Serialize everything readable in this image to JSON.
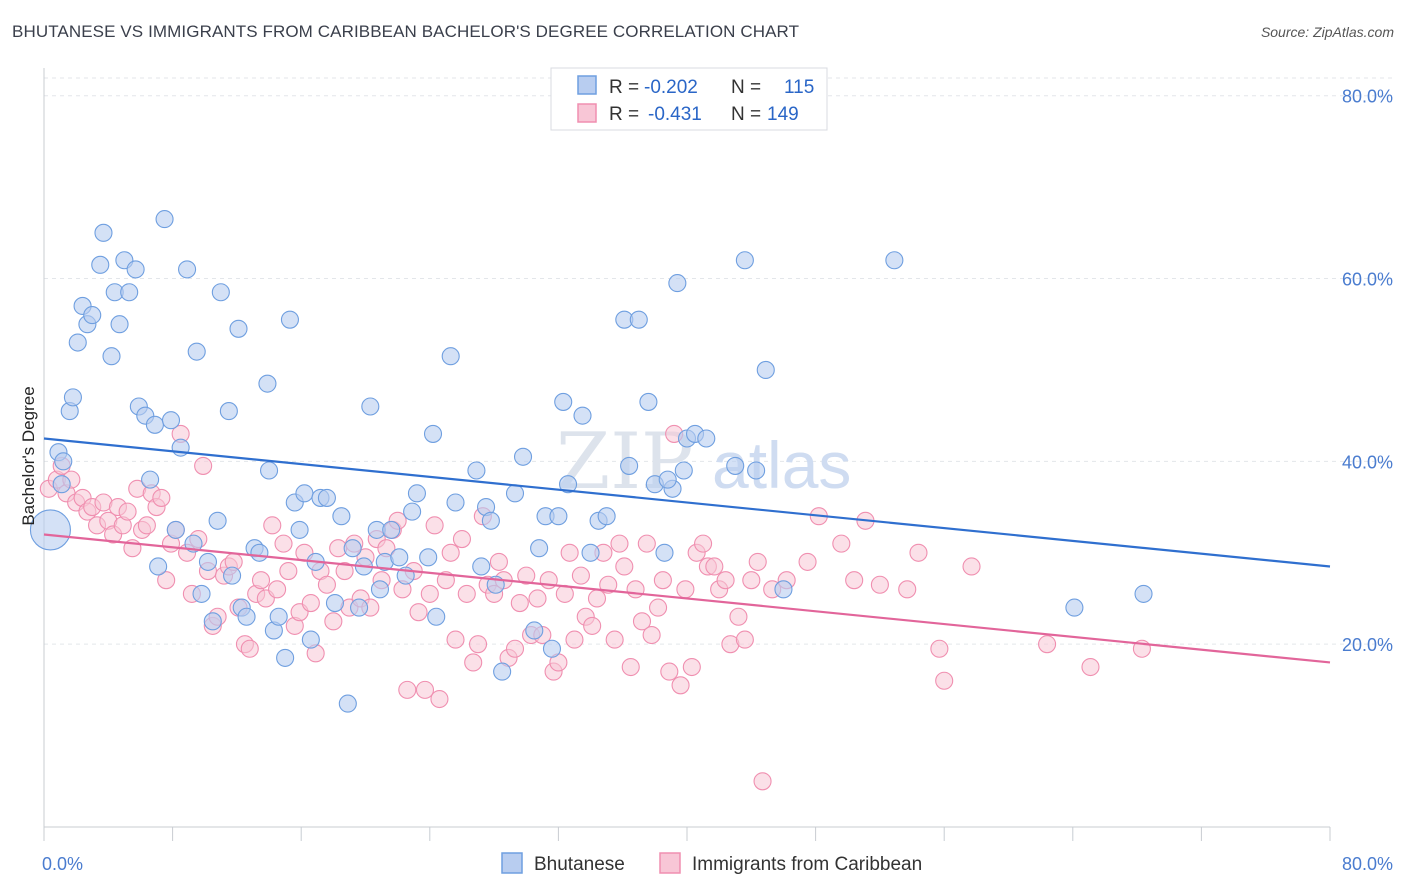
{
  "header": {
    "title": "BHUTANESE VS IMMIGRANTS FROM CARIBBEAN BACHELOR'S DEGREE CORRELATION CHART",
    "source": "Source: ZipAtlas.com"
  },
  "watermark": {
    "part1": "ZIP",
    "part2": "atlas"
  },
  "legend": {
    "r_label": "R =",
    "n_label": "N =",
    "entries": [
      {
        "r": "-0.202",
        "n": "115",
        "color": "#6f9fe0"
      },
      {
        "r": "-0.431",
        "n": "149",
        "color": "#f08fb0"
      }
    ]
  },
  "colors": {
    "series1_fill": "#b8cdf0",
    "series1_stroke": "#6f9fe0",
    "series1_line": "#2f6fcf",
    "series2_fill": "#f8c6d6",
    "series2_stroke": "#f08fb0",
    "series2_line": "#e2659a"
  },
  "chart_data": {
    "type": "scatter",
    "xlabel": "",
    "ylabel": "Bachelor's Degree",
    "xlim": [
      0,
      80
    ],
    "ylim": [
      0,
      85
    ],
    "x_tick_labels": [
      "0.0%",
      "80.0%"
    ],
    "y_ticks": [
      20,
      40,
      60,
      80
    ],
    "y_tick_labels": [
      "20.0%",
      "40.0%",
      "60.0%",
      "80.0%"
    ],
    "grid": true,
    "legend_position": "top-center",
    "series": [
      {
        "name": "Bhutanese",
        "trend": {
          "x": [
            0,
            80
          ],
          "y": [
            42.5,
            28.5
          ]
        },
        "points": [
          [
            0.4,
            32.5
          ],
          [
            0.9,
            41
          ],
          [
            1.2,
            40
          ],
          [
            1.6,
            45.5
          ],
          [
            1.8,
            47
          ],
          [
            2.1,
            53
          ],
          [
            2.4,
            57
          ],
          [
            2.7,
            55
          ],
          [
            3.0,
            56
          ],
          [
            3.5,
            61.5
          ],
          [
            3.7,
            65
          ],
          [
            4.2,
            51.5
          ],
          [
            4.4,
            58.5
          ],
          [
            4.7,
            55
          ],
          [
            5.0,
            62
          ],
          [
            5.3,
            58.5
          ],
          [
            5.7,
            61
          ],
          [
            5.9,
            46
          ],
          [
            6.3,
            45
          ],
          [
            6.6,
            38
          ],
          [
            6.9,
            44
          ],
          [
            7.1,
            28.5
          ],
          [
            7.5,
            66.5
          ],
          [
            7.9,
            44.5
          ],
          [
            8.2,
            32.5
          ],
          [
            8.5,
            41.5
          ],
          [
            8.9,
            61
          ],
          [
            9.3,
            31
          ],
          [
            9.5,
            52
          ],
          [
            9.8,
            25.5
          ],
          [
            10.2,
            29
          ],
          [
            10.5,
            22.5
          ],
          [
            10.8,
            33.5
          ],
          [
            11.0,
            58.5
          ],
          [
            11.5,
            45.5
          ],
          [
            11.7,
            27.5
          ],
          [
            12.1,
            54.5
          ],
          [
            12.3,
            24
          ],
          [
            12.6,
            23
          ],
          [
            13.1,
            30.5
          ],
          [
            13.4,
            30
          ],
          [
            13.9,
            48.5
          ],
          [
            14.0,
            39
          ],
          [
            14.3,
            21.5
          ],
          [
            14.6,
            23
          ],
          [
            15.0,
            18.5
          ],
          [
            15.3,
            55.5
          ],
          [
            15.6,
            35.5
          ],
          [
            15.9,
            32.5
          ],
          [
            16.2,
            36.5
          ],
          [
            16.6,
            20.5
          ],
          [
            16.9,
            29
          ],
          [
            17.2,
            36
          ],
          [
            17.6,
            36
          ],
          [
            18.1,
            24.5
          ],
          [
            18.5,
            34
          ],
          [
            18.9,
            13.5
          ],
          [
            19.2,
            30.5
          ],
          [
            19.6,
            24
          ],
          [
            19.9,
            28.5
          ],
          [
            20.3,
            46
          ],
          [
            20.7,
            32.5
          ],
          [
            20.9,
            26
          ],
          [
            21.2,
            29
          ],
          [
            21.6,
            32.5
          ],
          [
            22.1,
            29.5
          ],
          [
            22.5,
            27.5
          ],
          [
            22.9,
            34.5
          ],
          [
            23.2,
            36.5
          ],
          [
            23.9,
            29.5
          ],
          [
            24.2,
            43
          ],
          [
            24.4,
            23
          ],
          [
            25.3,
            51.5
          ],
          [
            25.6,
            35.5
          ],
          [
            26.9,
            39
          ],
          [
            27.2,
            28.5
          ],
          [
            27.5,
            35
          ],
          [
            27.8,
            33.5
          ],
          [
            28.1,
            26.5
          ],
          [
            28.5,
            17
          ],
          [
            29.3,
            36.5
          ],
          [
            29.8,
            40.5
          ],
          [
            30.5,
            21.5
          ],
          [
            30.8,
            30.5
          ],
          [
            31.2,
            34
          ],
          [
            31.6,
            19.5
          ],
          [
            32.0,
            34
          ],
          [
            32.3,
            46.5
          ],
          [
            32.6,
            37.5
          ],
          [
            33.5,
            45
          ],
          [
            34.0,
            30
          ],
          [
            34.5,
            33.5
          ],
          [
            35.0,
            34
          ],
          [
            36.1,
            55.5
          ],
          [
            36.4,
            39.5
          ],
          [
            37.0,
            55.5
          ],
          [
            37.6,
            46.5
          ],
          [
            38.0,
            37.5
          ],
          [
            38.6,
            30
          ],
          [
            39.1,
            37
          ],
          [
            38.8,
            38
          ],
          [
            39.4,
            59.5
          ],
          [
            39.8,
            39
          ],
          [
            40.0,
            42.5
          ],
          [
            40.5,
            43
          ],
          [
            41.2,
            42.5
          ],
          [
            43.0,
            39.5
          ],
          [
            43.6,
            62
          ],
          [
            44.3,
            39
          ],
          [
            44.9,
            50
          ],
          [
            46.0,
            26
          ],
          [
            52.9,
            62
          ],
          [
            64.1,
            24
          ],
          [
            68.4,
            25.5
          ],
          [
            1.1,
            37.5
          ]
        ]
      },
      {
        "name": "Immigrants from Caribbean",
        "trend": {
          "x": [
            0,
            80
          ],
          "y": [
            32,
            18
          ]
        },
        "points": [
          [
            0.3,
            37
          ],
          [
            0.8,
            38
          ],
          [
            1.1,
            39.5
          ],
          [
            1.4,
            36.5
          ],
          [
            1.7,
            38
          ],
          [
            2.0,
            35.5
          ],
          [
            2.4,
            36
          ],
          [
            2.7,
            34.5
          ],
          [
            3.0,
            35
          ],
          [
            3.3,
            33
          ],
          [
            3.7,
            35.5
          ],
          [
            4.0,
            33.5
          ],
          [
            4.3,
            32
          ],
          [
            4.6,
            35
          ],
          [
            4.9,
            33
          ],
          [
            5.2,
            34.5
          ],
          [
            5.5,
            30.5
          ],
          [
            5.8,
            37
          ],
          [
            6.1,
            32.5
          ],
          [
            6.4,
            33
          ],
          [
            6.7,
            36.5
          ],
          [
            7.0,
            35
          ],
          [
            7.3,
            36
          ],
          [
            7.6,
            27
          ],
          [
            7.9,
            31
          ],
          [
            8.2,
            32.5
          ],
          [
            8.5,
            43
          ],
          [
            8.9,
            30
          ],
          [
            9.2,
            25.5
          ],
          [
            9.6,
            31.5
          ],
          [
            9.9,
            39.5
          ],
          [
            10.2,
            28
          ],
          [
            10.5,
            22
          ],
          [
            10.8,
            23
          ],
          [
            11.2,
            27.5
          ],
          [
            11.5,
            28.5
          ],
          [
            11.8,
            29
          ],
          [
            12.1,
            24
          ],
          [
            12.5,
            20
          ],
          [
            12.8,
            19.5
          ],
          [
            13.2,
            25.5
          ],
          [
            13.5,
            27
          ],
          [
            13.8,
            25
          ],
          [
            14.2,
            33
          ],
          [
            14.5,
            26
          ],
          [
            14.9,
            31
          ],
          [
            15.2,
            28
          ],
          [
            15.6,
            22
          ],
          [
            15.9,
            23.5
          ],
          [
            16.2,
            30
          ],
          [
            16.6,
            24.5
          ],
          [
            16.9,
            19
          ],
          [
            17.2,
            28
          ],
          [
            17.6,
            26.5
          ],
          [
            18.0,
            22.5
          ],
          [
            18.3,
            30.5
          ],
          [
            18.7,
            28
          ],
          [
            19.0,
            24
          ],
          [
            19.3,
            31
          ],
          [
            19.7,
            25
          ],
          [
            20.0,
            29.5
          ],
          [
            20.3,
            24
          ],
          [
            20.7,
            31.5
          ],
          [
            21.0,
            27
          ],
          [
            21.3,
            30.5
          ],
          [
            21.7,
            32.5
          ],
          [
            22.0,
            33.5
          ],
          [
            22.3,
            26
          ],
          [
            22.6,
            15
          ],
          [
            23.0,
            28
          ],
          [
            23.3,
            23.5
          ],
          [
            23.7,
            15
          ],
          [
            24.0,
            25.5
          ],
          [
            24.3,
            33
          ],
          [
            24.6,
            14
          ],
          [
            25.0,
            27
          ],
          [
            25.3,
            30
          ],
          [
            25.6,
            20.5
          ],
          [
            26.0,
            31.5
          ],
          [
            26.3,
            25.5
          ],
          [
            26.7,
            18
          ],
          [
            27.0,
            20
          ],
          [
            27.3,
            34
          ],
          [
            27.6,
            26.5
          ],
          [
            28.0,
            25.5
          ],
          [
            28.3,
            29
          ],
          [
            28.6,
            27
          ],
          [
            28.9,
            18.5
          ],
          [
            29.3,
            19.5
          ],
          [
            29.6,
            24.5
          ],
          [
            30.0,
            27.5
          ],
          [
            30.3,
            21
          ],
          [
            30.7,
            25
          ],
          [
            31.0,
            21
          ],
          [
            31.4,
            27
          ],
          [
            31.7,
            17
          ],
          [
            32.0,
            18
          ],
          [
            32.4,
            25.5
          ],
          [
            32.7,
            30
          ],
          [
            33.0,
            20.5
          ],
          [
            33.4,
            27.5
          ],
          [
            33.7,
            23
          ],
          [
            34.1,
            22
          ],
          [
            34.4,
            25
          ],
          [
            34.8,
            30
          ],
          [
            35.1,
            26.5
          ],
          [
            35.5,
            20.5
          ],
          [
            35.8,
            31
          ],
          [
            36.1,
            28.5
          ],
          [
            36.5,
            17.5
          ],
          [
            36.8,
            26
          ],
          [
            37.2,
            22.5
          ],
          [
            37.5,
            31
          ],
          [
            37.8,
            21
          ],
          [
            38.2,
            24
          ],
          [
            38.5,
            27
          ],
          [
            38.9,
            17
          ],
          [
            39.2,
            43
          ],
          [
            39.6,
            15.5
          ],
          [
            39.9,
            26
          ],
          [
            40.3,
            17.5
          ],
          [
            40.6,
            30
          ],
          [
            41.0,
            31
          ],
          [
            41.3,
            28.5
          ],
          [
            41.7,
            28.5
          ],
          [
            42.0,
            26
          ],
          [
            42.4,
            27
          ],
          [
            42.7,
            20
          ],
          [
            43.2,
            23
          ],
          [
            43.6,
            20.5
          ],
          [
            44.0,
            27
          ],
          [
            44.4,
            29
          ],
          [
            44.7,
            5
          ],
          [
            45.3,
            26
          ],
          [
            46.2,
            27
          ],
          [
            47.5,
            29
          ],
          [
            48.2,
            34
          ],
          [
            49.6,
            31
          ],
          [
            50.4,
            27
          ],
          [
            51.1,
            33.5
          ],
          [
            52.0,
            26.5
          ],
          [
            53.7,
            26
          ],
          [
            54.4,
            30
          ],
          [
            55.7,
            19.5
          ],
          [
            56.0,
            16
          ],
          [
            57.7,
            28.5
          ],
          [
            62.4,
            20
          ],
          [
            65.1,
            17.5
          ],
          [
            68.3,
            19.5
          ]
        ]
      }
    ]
  },
  "bottom_legend": {
    "items": [
      {
        "label": "Bhutanese"
      },
      {
        "label": "Immigrants from Caribbean"
      }
    ]
  }
}
